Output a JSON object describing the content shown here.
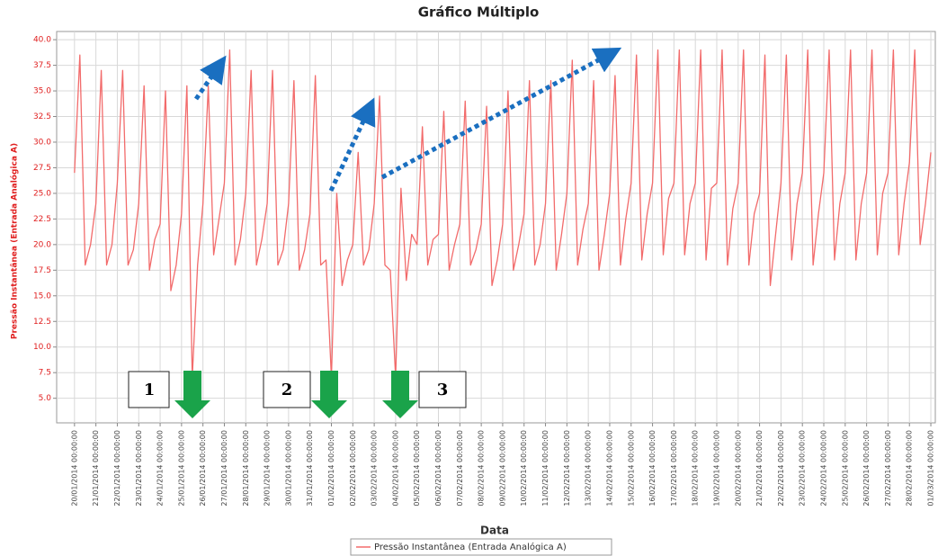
{
  "chart_data": {
    "type": "line",
    "title": "Gráfico Múltiplo",
    "xlabel": "Data",
    "ylabel": "Pressão Instantânea (Entrada Analógica A)",
    "x": [
      "20/01/2014 00:00:00",
      "20/01/2014 06:00:00",
      "20/01/2014 12:00:00",
      "20/01/2014 18:00:00",
      "21/01/2014 00:00:00",
      "21/01/2014 06:00:00",
      "21/01/2014 12:00:00",
      "21/01/2014 18:00:00",
      "22/01/2014 00:00:00",
      "22/01/2014 06:00:00",
      "22/01/2014 12:00:00",
      "22/01/2014 18:00:00",
      "23/01/2014 00:00:00",
      "23/01/2014 06:00:00",
      "23/01/2014 12:00:00",
      "23/01/2014 18:00:00",
      "24/01/2014 00:00:00",
      "24/01/2014 06:00:00",
      "24/01/2014 12:00:00",
      "24/01/2014 18:00:00",
      "25/01/2014 00:00:00",
      "25/01/2014 06:00:00",
      "25/01/2014 12:00:00",
      "25/01/2014 18:00:00",
      "26/01/2014 00:00:00",
      "26/01/2014 06:00:00",
      "26/01/2014 12:00:00",
      "26/01/2014 18:00:00",
      "27/01/2014 00:00:00",
      "27/01/2014 06:00:00",
      "27/01/2014 12:00:00",
      "27/01/2014 18:00:00",
      "28/01/2014 00:00:00",
      "28/01/2014 06:00:00",
      "28/01/2014 12:00:00",
      "28/01/2014 18:00:00",
      "29/01/2014 00:00:00",
      "29/01/2014 06:00:00",
      "29/01/2014 12:00:00",
      "29/01/2014 18:00:00",
      "30/01/2014 00:00:00",
      "30/01/2014 06:00:00",
      "30/01/2014 12:00:00",
      "30/01/2014 18:00:00",
      "31/01/2014 00:00:00",
      "31/01/2014 06:00:00",
      "31/01/2014 12:00:00",
      "31/01/2014 18:00:00",
      "01/02/2014 00:00:00",
      "01/02/2014 06:00:00",
      "01/02/2014 12:00:00",
      "01/02/2014 18:00:00",
      "02/02/2014 00:00:00",
      "02/02/2014 06:00:00",
      "02/02/2014 12:00:00",
      "02/02/2014 18:00:00",
      "03/02/2014 00:00:00",
      "03/02/2014 06:00:00",
      "03/02/2014 12:00:00",
      "03/02/2014 18:00:00",
      "04/02/2014 00:00:00",
      "04/02/2014 06:00:00",
      "04/02/2014 12:00:00",
      "04/02/2014 18:00:00",
      "05/02/2014 00:00:00",
      "05/02/2014 06:00:00",
      "05/02/2014 12:00:00",
      "05/02/2014 18:00:00",
      "06/02/2014 00:00:00",
      "06/02/2014 06:00:00",
      "06/02/2014 12:00:00",
      "06/02/2014 18:00:00",
      "07/02/2014 00:00:00",
      "07/02/2014 06:00:00",
      "07/02/2014 12:00:00",
      "07/02/2014 18:00:00",
      "08/02/2014 00:00:00",
      "08/02/2014 06:00:00",
      "08/02/2014 12:00:00",
      "08/02/2014 18:00:00",
      "09/02/2014 00:00:00",
      "09/02/2014 06:00:00",
      "09/02/2014 12:00:00",
      "09/02/2014 18:00:00",
      "10/02/2014 00:00:00",
      "10/02/2014 06:00:00",
      "10/02/2014 12:00:00",
      "10/02/2014 18:00:00",
      "11/02/2014 00:00:00",
      "11/02/2014 06:00:00",
      "11/02/2014 12:00:00",
      "11/02/2014 18:00:00",
      "12/02/2014 00:00:00",
      "12/02/2014 06:00:00",
      "12/02/2014 12:00:00",
      "12/02/2014 18:00:00",
      "13/02/2014 00:00:00",
      "13/02/2014 06:00:00",
      "13/02/2014 12:00:00",
      "13/02/2014 18:00:00",
      "14/02/2014 00:00:00",
      "14/02/2014 06:00:00",
      "14/02/2014 12:00:00",
      "14/02/2014 18:00:00",
      "15/02/2014 00:00:00",
      "15/02/2014 06:00:00",
      "15/02/2014 12:00:00",
      "15/02/2014 18:00:00",
      "16/02/2014 00:00:00",
      "16/02/2014 06:00:00",
      "16/02/2014 12:00:00",
      "16/02/2014 18:00:00",
      "17/02/2014 00:00:00",
      "17/02/2014 06:00:00",
      "17/02/2014 12:00:00",
      "17/02/2014 18:00:00",
      "18/02/2014 00:00:00",
      "18/02/2014 06:00:00",
      "18/02/2014 12:00:00",
      "18/02/2014 18:00:00",
      "19/02/2014 00:00:00",
      "19/02/2014 06:00:00",
      "19/02/2014 12:00:00",
      "19/02/2014 18:00:00",
      "20/02/2014 00:00:00",
      "20/02/2014 06:00:00",
      "20/02/2014 12:00:00",
      "20/02/2014 18:00:00",
      "21/02/2014 00:00:00",
      "21/02/2014 06:00:00",
      "21/02/2014 12:00:00",
      "21/02/2014 18:00:00",
      "22/02/2014 00:00:00",
      "22/02/2014 06:00:00",
      "22/02/2014 12:00:00",
      "22/02/2014 18:00:00",
      "23/02/2014 00:00:00",
      "23/02/2014 06:00:00",
      "23/02/2014 12:00:00",
      "23/02/2014 18:00:00",
      "24/02/2014 00:00:00",
      "24/02/2014 06:00:00",
      "24/02/2014 12:00:00",
      "24/02/2014 18:00:00",
      "25/02/2014 00:00:00",
      "25/02/2014 06:00:00",
      "25/02/2014 12:00:00",
      "25/02/2014 18:00:00",
      "26/02/2014 00:00:00",
      "26/02/2014 06:00:00",
      "26/02/2014 12:00:00",
      "26/02/2014 18:00:00",
      "27/02/2014 00:00:00",
      "27/02/2014 06:00:00",
      "27/02/2014 12:00:00",
      "27/02/2014 18:00:00",
      "28/02/2014 00:00:00",
      "28/02/2014 06:00:00",
      "28/02/2014 12:00:00",
      "28/02/2014 18:00:00",
      "01/03/2014 00:00:00"
    ],
    "series": [
      {
        "name": "Pressão Instantânea (Entrada Analógica A)",
        "color": "#f26b6b",
        "values": [
          27,
          38.5,
          18,
          20,
          24,
          37,
          18,
          20,
          26,
          37,
          18,
          19.5,
          24,
          35.5,
          17.5,
          20.5,
          22,
          35,
          15.5,
          18,
          23,
          35.5,
          7,
          18,
          24,
          35.5,
          19,
          22.5,
          26,
          39,
          18,
          20.5,
          25,
          37,
          18,
          20.5,
          24,
          37,
          18,
          19.5,
          24,
          36,
          17.5,
          19.5,
          23,
          36.5,
          18,
          18.5,
          7,
          25,
          16,
          18.5,
          20,
          29,
          18,
          19.5,
          24,
          34.5,
          18,
          17.5,
          7,
          25.5,
          16.5,
          21,
          20,
          31.5,
          18,
          20.5,
          21,
          33,
          17.5,
          20,
          22,
          34,
          18,
          19.5,
          22,
          33.5,
          16,
          18.5,
          22,
          35,
          17.5,
          20,
          23,
          36,
          18,
          20,
          24,
          36,
          17.5,
          21,
          25,
          38,
          18,
          21.5,
          24,
          36,
          17.5,
          21,
          25,
          36.5,
          18,
          22.5,
          26,
          38.5,
          18.5,
          23,
          26,
          39,
          19,
          24.5,
          26,
          39,
          19,
          24,
          26,
          39,
          18.5,
          25.5,
          26,
          39,
          18,
          23.5,
          26,
          39,
          18,
          23,
          25,
          38.5,
          16,
          21,
          26,
          38.5,
          18.5,
          24,
          27,
          39,
          18,
          23,
          27,
          39,
          18.5,
          24,
          27,
          39,
          18.5,
          24,
          27,
          39,
          19,
          25,
          27,
          39,
          19,
          24,
          28,
          39,
          20,
          24,
          29
        ]
      }
    ],
    "xlim": [
      "19/01/2014 04:00:00",
      "01/03/2014 05:00:00"
    ],
    "xticks": [
      "20/01/2014 00:00:00",
      "21/01/2014 00:00:00",
      "22/01/2014 00:00:00",
      "23/01/2014 00:00:00",
      "24/01/2014 00:00:00",
      "25/01/2014 00:00:00",
      "26/01/2014 00:00:00",
      "27/01/2014 00:00:00",
      "28/01/2014 00:00:00",
      "29/01/2014 00:00:00",
      "30/01/2014 00:00:00",
      "31/01/2014 00:00:00",
      "01/02/2014 00:00:00",
      "02/02/2014 00:00:00",
      "03/02/2014 00:00:00",
      "04/02/2014 00:00:00",
      "05/02/2014 00:00:00",
      "06/02/2014 00:00:00",
      "07/02/2014 00:00:00",
      "08/02/2014 00:00:00",
      "09/02/2014 00:00:00",
      "10/02/2014 00:00:00",
      "11/02/2014 00:00:00",
      "12/02/2014 00:00:00",
      "13/02/2014 00:00:00",
      "14/02/2014 00:00:00",
      "15/02/2014 00:00:00",
      "16/02/2014 00:00:00",
      "17/02/2014 00:00:00",
      "18/02/2014 00:00:00",
      "19/02/2014 00:00:00",
      "20/02/2014 00:00:00",
      "21/02/2014 00:00:00",
      "22/02/2014 00:00:00",
      "23/02/2014 00:00:00",
      "24/02/2014 00:00:00",
      "25/02/2014 00:00:00",
      "26/02/2014 00:00:00",
      "27/02/2014 00:00:00",
      "28/02/2014 00:00:00",
      "01/03/2014 00:00:00"
    ],
    "ylim": [
      2.6,
      40.8
    ],
    "yticks": [
      {
        "value": 5,
        "label": "5.0"
      },
      7.5,
      {
        "value": 10,
        "label": "10.0"
      },
      12.5,
      {
        "value": 15,
        "label": "15.0"
      },
      17.5,
      {
        "value": 20,
        "label": "20.0"
      },
      22.5,
      {
        "value": 25,
        "label": "25.0"
      },
      27.5,
      {
        "value": 30,
        "label": "30.0"
      },
      32.5,
      {
        "value": 35,
        "label": "35.0"
      },
      37.5,
      {
        "value": 40,
        "label": "40.0"
      }
    ],
    "grid": true,
    "annotations": [
      "1",
      "2",
      "3"
    ]
  }
}
